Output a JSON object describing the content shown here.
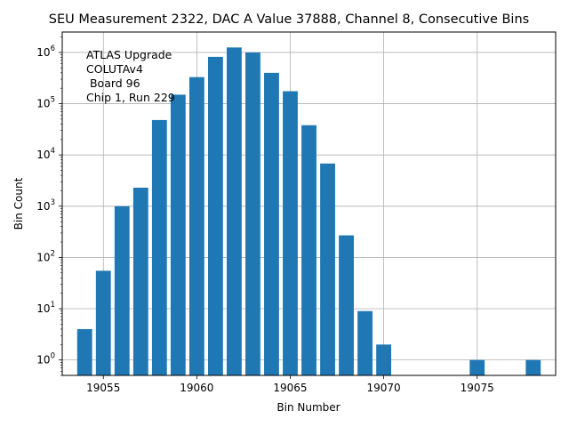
{
  "chart_data": {
    "type": "bar",
    "title": "SEU Measurement 2322, DAC A Value 37888, Channel 8, Consecutive Bins",
    "xlabel": "Bin Number",
    "ylabel": "Bin Count",
    "y_scale": "log",
    "ylim": [
      0.5,
      2500000
    ],
    "xlim": [
      19052.8,
      19079.2
    ],
    "x_ticks": [
      19055,
      19060,
      19065,
      19070,
      19075
    ],
    "y_tick_exponents": [
      0,
      1,
      2,
      3,
      4,
      5,
      6
    ],
    "grid": true,
    "bar_color": "#1f77b4",
    "annotation_lines": [
      "ATLAS Upgrade",
      "COLUTAv4",
      " Board 96",
      "Chip 1, Run 229"
    ],
    "x": [
      19054,
      19055,
      19056,
      19057,
      19058,
      19059,
      19060,
      19061,
      19062,
      19063,
      19064,
      19065,
      19066,
      19067,
      19068,
      19069,
      19070,
      19075,
      19078
    ],
    "values": [
      4,
      55,
      1000,
      2300,
      48000,
      150000,
      330000,
      820000,
      1250000,
      1000000,
      400000,
      175000,
      38000,
      6800,
      270,
      9,
      2,
      1,
      1
    ]
  }
}
